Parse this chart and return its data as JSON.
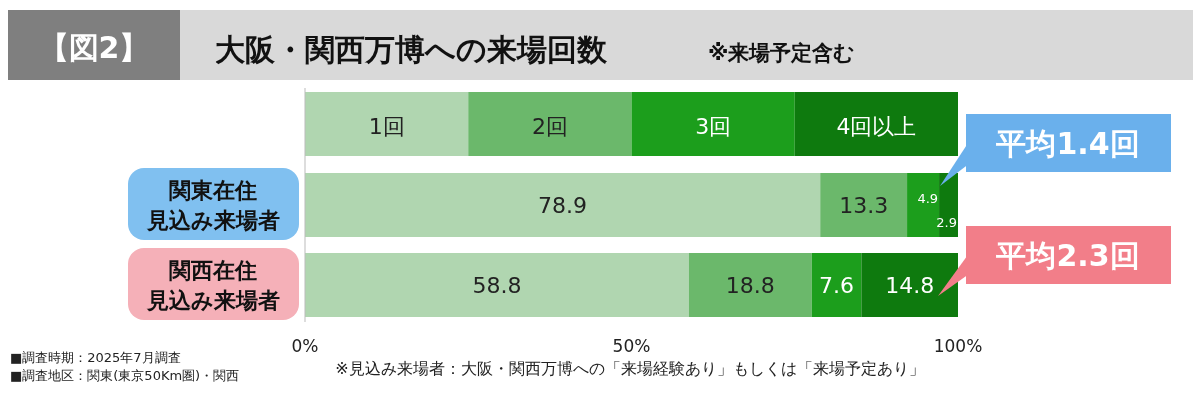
{
  "chart_data": {
    "type": "bar",
    "orientation": "horizontal",
    "stacked": true,
    "title": "【図2】",
    "subtitle": "大阪・関西万博への来場回数",
    "legend_title": "※来場予定含む",
    "categories": [
      "関東在住見込み来場者",
      "関西在住見込み来場者"
    ],
    "series": [
      {
        "name": "1回",
        "color": "#b0d6b0",
        "values": [
          78.9,
          58.8
        ]
      },
      {
        "name": "2回",
        "color": "#6bb86b",
        "values": [
          13.3,
          18.8
        ]
      },
      {
        "name": "3回",
        "color": "#1c9e1c",
        "values": [
          4.9,
          7.6
        ]
      },
      {
        "name": "4回以上",
        "color": "#0e7a0e",
        "values": [
          2.9,
          14.8
        ]
      }
    ],
    "xlim": [
      0,
      100
    ],
    "xticks": [
      {
        "value": 0,
        "label": "0%"
      },
      {
        "value": 50,
        "label": "50%"
      },
      {
        "value": 100,
        "label": "100%"
      }
    ],
    "data_labels": true,
    "legend": "top",
    "grid": false,
    "annotations": [
      "平均1.4回",
      "平均2.3回",
      "■調査時期：2025年7月調査",
      "■調査地区：関東(東京50Km圏)・関西",
      "※見込み来場者：大阪・関西万博への「来場経験あり」もしくは「来場予定あり」"
    ]
  }
}
